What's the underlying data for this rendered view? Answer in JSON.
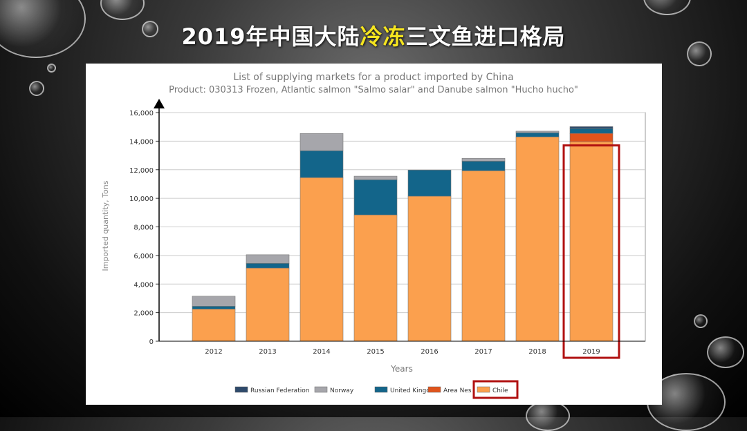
{
  "slide": {
    "title_pre": "2019年中国大陆",
    "title_highlight": "冷冻",
    "title_post": "三文鱼进口格局"
  },
  "colors": {
    "Russian Federation": "#2e4a6b",
    "Norway": "#a6a6ab",
    "United Kingdom": "#13658a",
    "Area Nes": "#e0541c",
    "Chile": "#fba04e",
    "highlight": "#b01010"
  },
  "chart_data": {
    "type": "bar",
    "stacked": true,
    "title": "List of supplying markets for a product imported by China",
    "subtitle": "Product: 030313 Frozen, Atlantic salmon \"Salmo salar\" and Danube salmon \"Hucho hucho\"",
    "xlabel": "Years",
    "ylabel": "Imported quantity, Tons",
    "ylim": [
      0,
      16000
    ],
    "yticks": [
      "0",
      "2,000",
      "4,000",
      "6,000",
      "8,000",
      "10,000",
      "12,000",
      "14,000",
      "16,000"
    ],
    "categories": [
      "2012",
      "2013",
      "2014",
      "2015",
      "2016",
      "2017",
      "2018",
      "2019"
    ],
    "grid": true,
    "legend_position": "bottom",
    "legend": [
      "Russian Federation",
      "Norway",
      "United Kingdom",
      "Area Nes",
      "Chile"
    ],
    "series": [
      {
        "name": "Chile",
        "values": [
          2250,
          5120,
          11450,
          8840,
          10150,
          11930,
          14300,
          13960
        ]
      },
      {
        "name": "Area Nes",
        "values": [
          0,
          0,
          0,
          0,
          0,
          0,
          0,
          580
        ]
      },
      {
        "name": "United Kingdom",
        "values": [
          200,
          330,
          1880,
          2460,
          1830,
          670,
          290,
          340
        ]
      },
      {
        "name": "Norway",
        "values": [
          700,
          600,
          1210,
          250,
          0,
          200,
          110,
          0
        ]
      },
      {
        "name": "Russian Federation",
        "values": [
          0,
          0,
          0,
          0,
          0,
          0,
          0,
          140
        ]
      }
    ],
    "highlighted": {
      "category": "2019",
      "legend_entry": "Chile"
    }
  }
}
